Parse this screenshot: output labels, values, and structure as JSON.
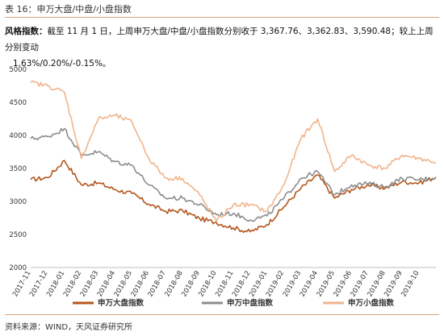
{
  "figure_title": "表 16：申万大盘/中盘/小盘指数",
  "paragraph": {
    "lead": "风格指数：",
    "line1": "截至 11 月 1 日，上周申万大盘/中盘/小盘指数分别收于 3,367.76、3,362.83、3,590.48；较上上周分别变动",
    "line2": "1.63%/0.20%/-0.15%。"
  },
  "source": "资料来源：WIND，天风证券研究所",
  "chart_data": {
    "type": "line",
    "title": "",
    "xlabel": "",
    "ylabel": "",
    "ylim": [
      2000,
      5000
    ],
    "yticks": [
      2000,
      2500,
      3000,
      3500,
      4000,
      4500,
      5000
    ],
    "x_tick_labels": [
      "2017-11",
      "2017-12",
      "2018-01",
      "2018-02",
      "2018-03",
      "2018-04",
      "2018-05",
      "2018-06",
      "2018-07",
      "2018-08",
      "2018-09",
      "2018-10",
      "2018-11",
      "2018-12",
      "2019-01",
      "2019-02",
      "2019-03",
      "2019-04",
      "2019-05",
      "2019-06",
      "2019-07",
      "2019-08",
      "2019-09",
      "2019-10"
    ],
    "grid": false,
    "legend_position": "bottom",
    "x": [
      "2017-11",
      "2017-12",
      "2018-01",
      "2018-02",
      "2018-03",
      "2018-04",
      "2018-05",
      "2018-06",
      "2018-07",
      "2018-08",
      "2018-09",
      "2018-10",
      "2018-11",
      "2018-12",
      "2019-01",
      "2019-02",
      "2019-03",
      "2019-04",
      "2019-05",
      "2019-06",
      "2019-07",
      "2019-08",
      "2019-09",
      "2019-10",
      "2019-11"
    ],
    "series": [
      {
        "name": "申万大盘指数",
        "color": "#b4561b",
        "values": [
          3330,
          3360,
          3620,
          3250,
          3280,
          3180,
          3120,
          2960,
          2850,
          2860,
          2740,
          2680,
          2600,
          2540,
          2650,
          2920,
          3200,
          3400,
          3050,
          3180,
          3250,
          3200,
          3300,
          3280,
          3368
        ]
      },
      {
        "name": "申万中盘指数",
        "color": "#8c8c8c",
        "values": [
          3950,
          3980,
          4100,
          3700,
          3750,
          3600,
          3550,
          3250,
          3050,
          3050,
          2950,
          2800,
          2820,
          2720,
          2780,
          3050,
          3350,
          3450,
          3100,
          3250,
          3270,
          3220,
          3350,
          3330,
          3363
        ]
      },
      {
        "name": "申万小盘指数",
        "color": "#f0b48c",
        "values": [
          4800,
          4750,
          4650,
          3650,
          4250,
          4300,
          4200,
          3650,
          3350,
          3350,
          3100,
          2700,
          2950,
          2950,
          2850,
          3250,
          3950,
          4250,
          3450,
          3700,
          3550,
          3500,
          3700,
          3650,
          3590
        ]
      }
    ]
  }
}
